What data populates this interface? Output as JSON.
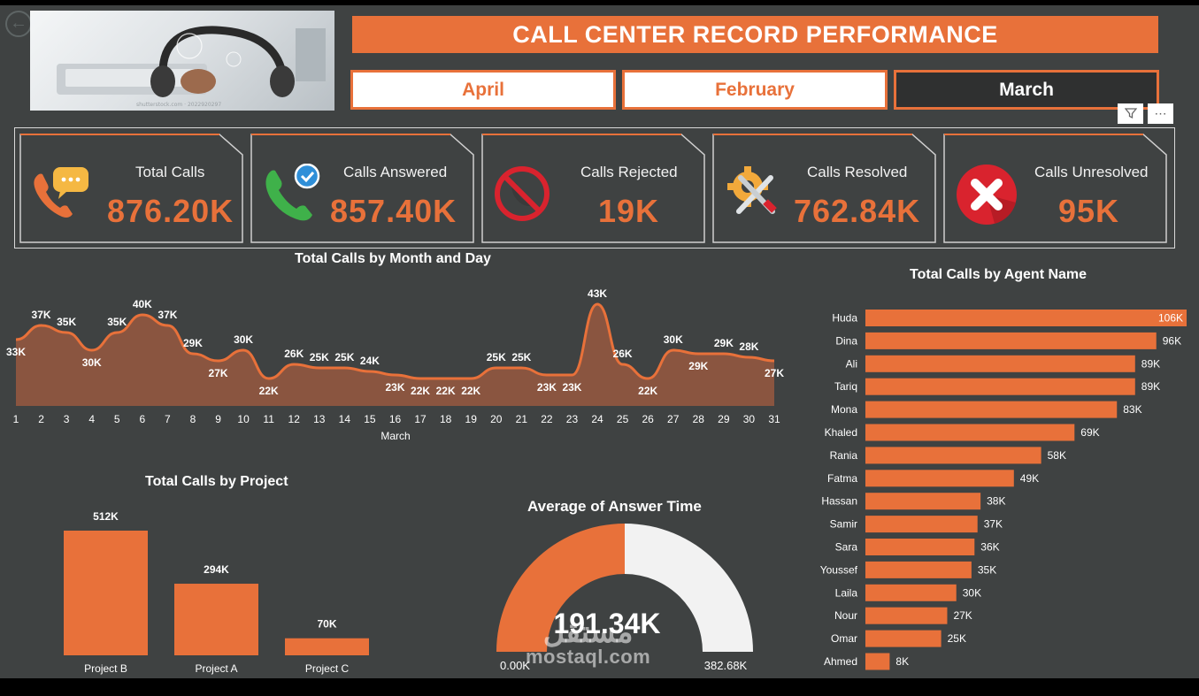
{
  "back_icon": "back-arrow-icon",
  "title": "CALL CENTER RECORD PERFORMANCE",
  "photo": {
    "icon": "headset-photo",
    "credit": "shutterstock.com · 2022920297"
  },
  "months": [
    {
      "label": "April",
      "selected": false
    },
    {
      "label": "February",
      "selected": false
    },
    {
      "label": "March",
      "selected": true
    }
  ],
  "tools": {
    "filter_icon": "filter-icon",
    "more_icon": "more-options-icon",
    "more_label": "⋯"
  },
  "colors": {
    "accent": "#e8713a",
    "background": "#3f4242",
    "text": "#ffffff",
    "gauge_rest": "#f2f2f2"
  },
  "kpis": [
    {
      "label": "Total Calls",
      "value": "876.20K",
      "icon": "phone-chat-icon"
    },
    {
      "label": "Calls Answered",
      "value": "857.40K",
      "icon": "phone-check-icon"
    },
    {
      "label": "Calls Rejected",
      "value": "19K",
      "icon": "phone-blocked-icon"
    },
    {
      "label": "Calls Resolved",
      "value": "762.84K",
      "icon": "gear-tools-icon"
    },
    {
      "label": "Calls Unresolved",
      "value": "95K",
      "icon": "red-x-icon"
    }
  ],
  "chart_data": [
    {
      "type": "area",
      "title": "Total Calls by Month and Day",
      "xlabel": "March",
      "x": [
        1,
        2,
        3,
        4,
        5,
        6,
        7,
        8,
        9,
        10,
        11,
        12,
        13,
        14,
        15,
        16,
        17,
        18,
        19,
        20,
        21,
        22,
        23,
        24,
        25,
        26,
        27,
        28,
        29,
        30,
        31
      ],
      "values": [
        33,
        37,
        35,
        30,
        35,
        40,
        37,
        29,
        27,
        30,
        22,
        26,
        25,
        25,
        24,
        23,
        22,
        22,
        22,
        25,
        25,
        23,
        23,
        43,
        26,
        22,
        30,
        29,
        29,
        28,
        27
      ],
      "labels": [
        "33K",
        "37K",
        "35K",
        "30K",
        "35K",
        "40K",
        "37K",
        "29K",
        "27K",
        "30K",
        "22K",
        "26K",
        "25K",
        "25K",
        "24K",
        "23K",
        "22K",
        "22K",
        "22K",
        "25K",
        "25K",
        "23K",
        "23K",
        "43K",
        "26K",
        "22K",
        "30K",
        "29K",
        "29K",
        "28K",
        "27K"
      ],
      "ylim": [
        15,
        45
      ]
    },
    {
      "type": "bar",
      "title": "Total Calls by Agent Name",
      "orientation": "horizontal",
      "categories": [
        "Huda",
        "Dina",
        "Ali",
        "Tariq",
        "Mona",
        "Khaled",
        "Rania",
        "Fatma",
        "Hassan",
        "Samir",
        "Sara",
        "Youssef",
        "Laila",
        "Nour",
        "Omar",
        "Ahmed"
      ],
      "values": [
        106,
        96,
        89,
        89,
        83,
        69,
        58,
        49,
        38,
        37,
        36,
        35,
        30,
        27,
        25,
        8
      ],
      "labels": [
        "106K",
        "96K",
        "89K",
        "89K",
        "83K",
        "69K",
        "58K",
        "49K",
        "38K",
        "37K",
        "36K",
        "35K",
        "30K",
        "27K",
        "25K",
        "8K"
      ]
    },
    {
      "type": "bar",
      "title": "Total Calls by Project",
      "categories": [
        "Project B",
        "Project A",
        "Project C"
      ],
      "values": [
        512,
        294,
        70
      ],
      "labels": [
        "512K",
        "294K",
        "70K"
      ]
    },
    {
      "type": "gauge",
      "title": "Average of Answer Time",
      "value": 191.34,
      "min": 0,
      "max": 382.68,
      "value_label": "191.34K",
      "min_label": "0.00K",
      "max_label": "382.68K"
    }
  ],
  "watermark": {
    "logo": "مستقل",
    "text": "mostaql.com"
  }
}
